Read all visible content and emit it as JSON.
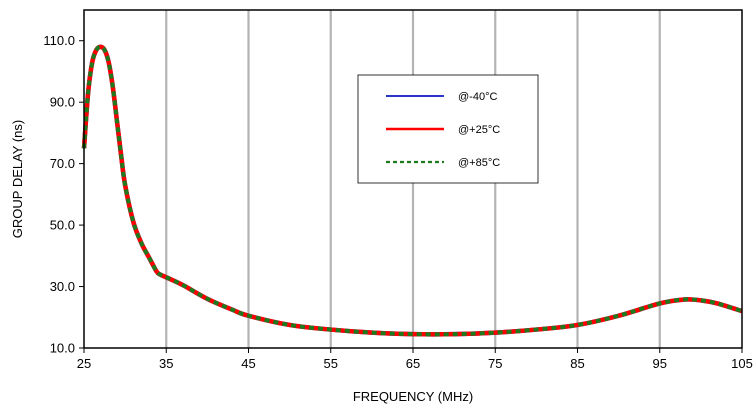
{
  "chart_data": {
    "type": "line",
    "title": "",
    "xlabel": "FREQUENCY (MHz)",
    "ylabel": "GROUP DELAY (ns)",
    "xlim": [
      25,
      105
    ],
    "ylim": [
      10,
      120
    ],
    "xticks": [
      25,
      35,
      45,
      55,
      65,
      75,
      85,
      95,
      105
    ],
    "xtick_labels": [
      "25",
      "35",
      "45",
      "55",
      "65",
      "75",
      "85",
      "95",
      "105"
    ],
    "yticks": [
      10,
      30,
      50,
      70,
      90,
      110
    ],
    "ytick_labels": [
      "10.0",
      "30.0",
      "50.0",
      "70.0",
      "90.0",
      "110.0"
    ],
    "grid": "vertical",
    "legend_position": "upper-center",
    "colors": {
      "minus40": "#2b35c8",
      "plus25": "#ff0000",
      "plus85": "#1e7a1e",
      "grid": "#b4b4b4"
    },
    "x": [
      25,
      25.5,
      26,
      26.5,
      27,
      27.5,
      28,
      28.5,
      29,
      29.5,
      30,
      31,
      32,
      33,
      33.8,
      34.2,
      35,
      37,
      40,
      43,
      45,
      50,
      55,
      60,
      65,
      70,
      75,
      80,
      85,
      90,
      95,
      98,
      100,
      102,
      105
    ],
    "series": [
      {
        "name": "@-40°C",
        "style": "solid",
        "color": "#2b35c8",
        "values": [
          75,
          93,
          103,
          107,
          108,
          107,
          103,
          95,
          84,
          73,
          63,
          51,
          44,
          39,
          35,
          34,
          33,
          30.5,
          26,
          22.5,
          20.5,
          17.5,
          16,
          15,
          14.5,
          14.5,
          15,
          16,
          17.5,
          20.5,
          24.5,
          25.8,
          25.5,
          24.5,
          22
        ]
      },
      {
        "name": "@+25°C",
        "style": "solid",
        "color": "#ff0000",
        "values": [
          75,
          93,
          103,
          107,
          108,
          107,
          103,
          95,
          84,
          73,
          63,
          51,
          44,
          39,
          35,
          34,
          33,
          30.5,
          26,
          22.5,
          20.5,
          17.5,
          16,
          15,
          14.5,
          14.5,
          15,
          16,
          17.5,
          20.5,
          24.5,
          25.8,
          25.5,
          24.5,
          22
        ]
      },
      {
        "name": "@+85°C",
        "style": "dashed",
        "color": "#1e7a1e",
        "values": [
          75,
          93,
          103,
          107,
          108,
          107,
          103,
          95,
          84,
          73,
          63,
          51,
          44,
          39,
          35,
          34,
          33,
          30.5,
          26,
          22.5,
          20.5,
          17.5,
          16,
          15,
          14.5,
          14.5,
          15,
          16,
          17.5,
          20.5,
          24.5,
          25.8,
          25.5,
          24.5,
          22
        ]
      }
    ]
  }
}
